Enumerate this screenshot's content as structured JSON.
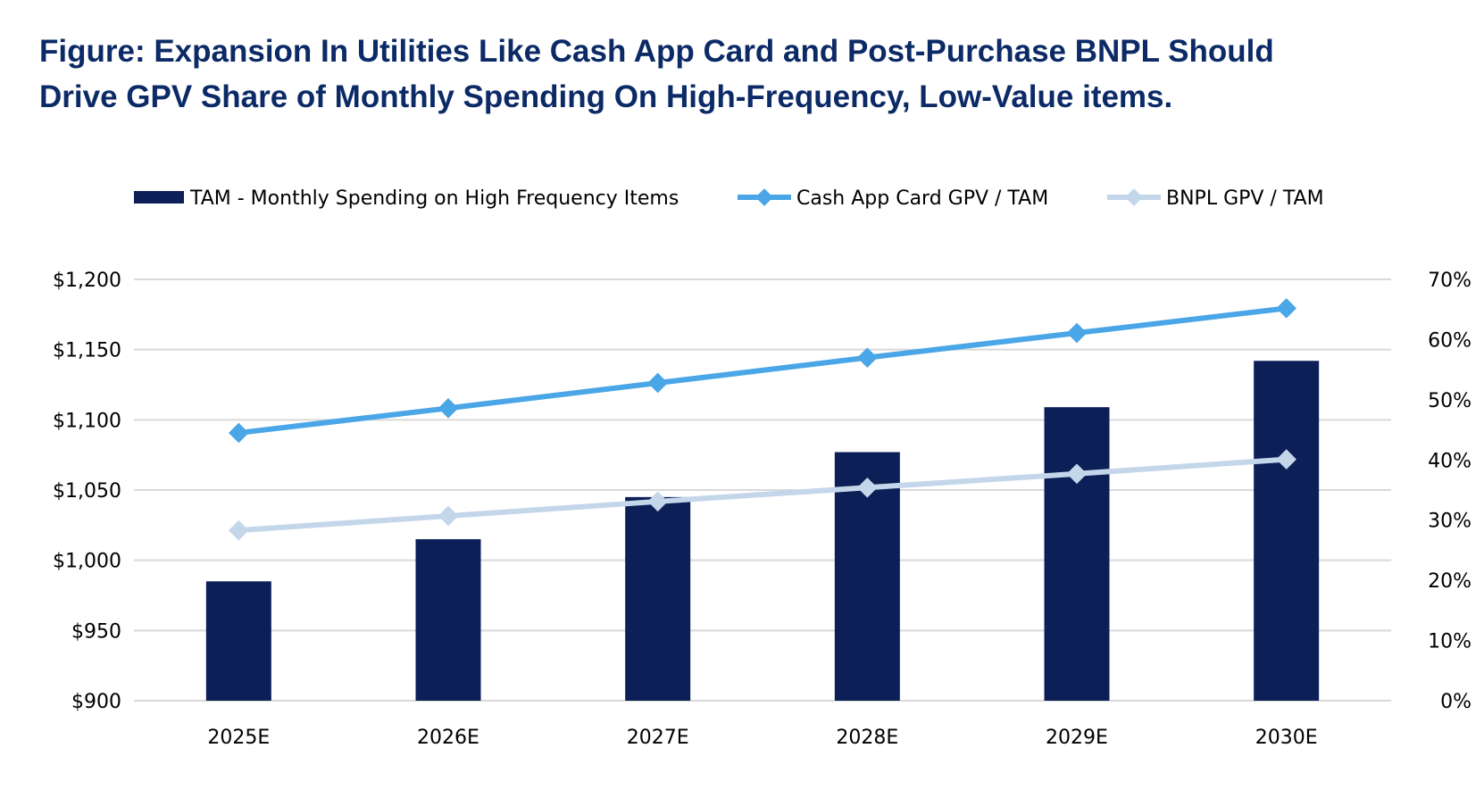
{
  "title_lines": [
    "Figure: Expansion In Utilities Like Cash App Card and Post-Purchase BNPL Should",
    "Drive GPV Share of Monthly Spending On High-Frequency, Low-Value items."
  ],
  "colors": {
    "title": "#0b2a66",
    "bar": "#0c1f57",
    "line_cash": "#4aa6e6",
    "line_bnpl": "#c4d6ea",
    "grid": "#d9d9d9"
  },
  "chart_data": {
    "type": "bar",
    "title": "Figure: Expansion In Utilities Like Cash App Card and Post-Purchase BNPL Should Drive GPV Share of Monthly Spending On High-Frequency, Low-Value items.",
    "categories": [
      "2025E",
      "2026E",
      "2027E",
      "2028E",
      "2029E",
      "2030E"
    ],
    "bars": {
      "name": "TAM - Monthly Spending on High Frequency Items",
      "axis": "left",
      "values": [
        985,
        1015,
        1045,
        1077,
        1109,
        1142
      ]
    },
    "lines": [
      {
        "name": "Cash App Card GPV / TAM",
        "axis": "right",
        "values": [
          44.5,
          48.6,
          52.8,
          57.0,
          61.1,
          65.2
        ],
        "color_key": "line_cash"
      },
      {
        "name": "BNPL GPV / TAM",
        "axis": "right",
        "values": [
          28.3,
          30.7,
          33.1,
          35.4,
          37.7,
          40.1
        ],
        "color_key": "line_bnpl"
      }
    ],
    "y_left": {
      "min": 900,
      "max": 1200,
      "step": 50,
      "ticks": [
        "$900",
        "$950",
        "$1,000",
        "$1,050",
        "$1,100",
        "$1,150",
        "$1,200"
      ]
    },
    "y_right": {
      "min": 0,
      "max": 70,
      "step": 10,
      "ticks": [
        "0%",
        "10%",
        "20%",
        "30%",
        "40%",
        "50%",
        "60%",
        "70%"
      ]
    },
    "grid": true,
    "legend_position": "top"
  }
}
